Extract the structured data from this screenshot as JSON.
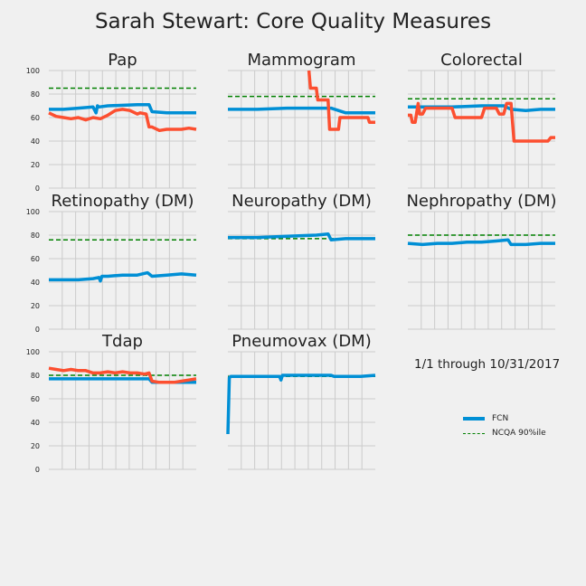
{
  "title": "Sarah Stewart: Core Quality Measures",
  "date_range": "1/1 through 10/31/2017",
  "legend": {
    "fcn": "FCN",
    "ncqa": "NCQA 90%ile"
  },
  "colors": {
    "fcn": "#008fd5",
    "provider": "#fc4f30",
    "ncqa": "#008000",
    "grid": "#cbcbcb",
    "background": "#f0f0f0"
  },
  "chart_data": [
    {
      "type": "line",
      "title": "Pap",
      "ylim": [
        0,
        100
      ],
      "yticks": [
        0,
        20,
        40,
        60,
        80,
        100
      ],
      "ncqa": 85,
      "series": [
        {
          "x": [
            0,
            0.1,
            0.2,
            0.3,
            0.32,
            0.33,
            0.34,
            0.4,
            0.6,
            0.68,
            0.7,
            0.8,
            0.9,
            1.0
          ],
          "y": [
            67,
            67,
            68,
            69,
            64,
            70,
            69,
            70,
            71,
            71,
            65,
            64,
            64,
            64
          ]
        },
        {
          "x": [
            0,
            0.05,
            0.1,
            0.15,
            0.2,
            0.25,
            0.3,
            0.35,
            0.4,
            0.45,
            0.5,
            0.55,
            0.6,
            0.62,
            0.66,
            0.68,
            0.7,
            0.75,
            0.8,
            0.85,
            0.9,
            0.95,
            1.0
          ],
          "y": [
            64,
            61,
            60,
            59,
            60,
            58,
            60,
            59,
            62,
            66,
            67,
            66,
            63,
            64,
            63,
            52,
            52,
            49,
            50,
            50,
            50,
            51,
            50
          ]
        }
      ]
    },
    {
      "type": "line",
      "title": "Mammogram",
      "ylim": [
        0,
        100
      ],
      "yticks": [
        0,
        20,
        40,
        60,
        80,
        100
      ],
      "ncqa": 78,
      "series": [
        {
          "x": [
            0,
            0.2,
            0.4,
            0.6,
            0.7,
            0.8,
            0.9,
            1.0
          ],
          "y": [
            67,
            67,
            68,
            68,
            68,
            64,
            64,
            64
          ]
        },
        {
          "x": [
            0.55,
            0.56,
            0.6,
            0.61,
            0.68,
            0.69,
            0.75,
            0.76,
            0.9,
            0.95,
            0.96,
            1.0
          ],
          "y": [
            100,
            85,
            85,
            75,
            75,
            50,
            50,
            60,
            60,
            60,
            56,
            56
          ]
        }
      ]
    },
    {
      "type": "line",
      "title": "Colorectal",
      "ylim": [
        0,
        100
      ],
      "yticks": [
        0,
        20,
        40,
        60,
        80,
        100
      ],
      "ncqa": 76,
      "series": [
        {
          "x": [
            0,
            0.1,
            0.3,
            0.5,
            0.65,
            0.7,
            0.8,
            0.9,
            1.0
          ],
          "y": [
            69,
            69,
            69,
            70,
            70,
            67,
            66,
            67,
            67
          ]
        },
        {
          "x": [
            0,
            0.02,
            0.03,
            0.05,
            0.07,
            0.08,
            0.1,
            0.12,
            0.3,
            0.32,
            0.5,
            0.52,
            0.6,
            0.62,
            0.65,
            0.67,
            0.7,
            0.72,
            0.95,
            0.97,
            1.0
          ],
          "y": [
            62,
            62,
            56,
            56,
            72,
            63,
            63,
            68,
            68,
            60,
            60,
            68,
            68,
            63,
            63,
            72,
            72,
            40,
            40,
            43,
            43
          ]
        }
      ]
    },
    {
      "type": "line",
      "title": "Retinopathy (DM)",
      "ylim": [
        0,
        100
      ],
      "yticks": [
        0,
        20,
        40,
        60,
        80,
        100
      ],
      "ncqa": 76,
      "series": [
        {
          "x": [
            0,
            0.1,
            0.2,
            0.3,
            0.34,
            0.35,
            0.36,
            0.4,
            0.5,
            0.6,
            0.67,
            0.7,
            0.8,
            0.9,
            1.0
          ],
          "y": [
            42,
            42,
            42,
            43,
            44,
            41,
            45,
            45,
            46,
            46,
            48,
            45,
            46,
            47,
            46
          ]
        }
      ]
    },
    {
      "type": "line",
      "title": "Neuropathy (DM)",
      "ylim": [
        0,
        100
      ],
      "yticks": [
        0,
        20,
        40,
        60,
        80,
        100
      ],
      "ncqa": 77,
      "series": [
        {
          "x": [
            0,
            0.2,
            0.4,
            0.6,
            0.68,
            0.7,
            0.8,
            0.9,
            1.0
          ],
          "y": [
            78,
            78,
            79,
            80,
            81,
            76,
            77,
            77,
            77
          ]
        }
      ]
    },
    {
      "type": "line",
      "title": "Nephropathy (DM)",
      "ylim": [
        0,
        100
      ],
      "yticks": [
        0,
        20,
        40,
        60,
        80,
        100
      ],
      "ncqa": 80,
      "series": [
        {
          "x": [
            0,
            0.1,
            0.2,
            0.3,
            0.4,
            0.5,
            0.6,
            0.68,
            0.7,
            0.8,
            0.9,
            1.0
          ],
          "y": [
            73,
            72,
            73,
            73,
            74,
            74,
            75,
            76,
            72,
            72,
            73,
            73
          ]
        }
      ]
    },
    {
      "type": "line",
      "title": "Tdap",
      "ylim": [
        0,
        100
      ],
      "yticks": [
        0,
        20,
        40,
        60,
        80,
        100
      ],
      "ncqa": 80,
      "series": [
        {
          "x": [
            0,
            0.2,
            0.4,
            0.6,
            0.68,
            0.7,
            0.8,
            0.9,
            1.0
          ],
          "y": [
            77,
            77,
            77,
            77,
            77,
            74,
            74,
            74,
            74
          ]
        },
        {
          "x": [
            0,
            0.05,
            0.1,
            0.15,
            0.2,
            0.25,
            0.3,
            0.35,
            0.4,
            0.45,
            0.5,
            0.55,
            0.6,
            0.65,
            0.68,
            0.7,
            0.75,
            0.8,
            0.85,
            0.9,
            0.95,
            1.0
          ],
          "y": [
            86,
            85,
            84,
            85,
            84,
            84,
            82,
            82,
            83,
            82,
            83,
            82,
            82,
            81,
            82,
            75,
            74,
            74,
            74,
            75,
            76,
            77
          ]
        }
      ]
    },
    {
      "type": "line",
      "title": "Pneumovax (DM)",
      "ylim": [
        0,
        100
      ],
      "yticks": [
        0,
        20,
        40,
        60,
        80,
        100
      ],
      "ncqa": 79,
      "series": [
        {
          "x": [
            0,
            0.01,
            0.02,
            0.1,
            0.2,
            0.35,
            0.36,
            0.37,
            0.4,
            0.6,
            0.7,
            0.72,
            0.8,
            0.9,
            1.0
          ],
          "y": [
            30,
            78,
            79,
            79,
            79,
            79,
            76,
            80,
            80,
            80,
            80,
            79,
            79,
            79,
            80
          ]
        }
      ]
    }
  ]
}
